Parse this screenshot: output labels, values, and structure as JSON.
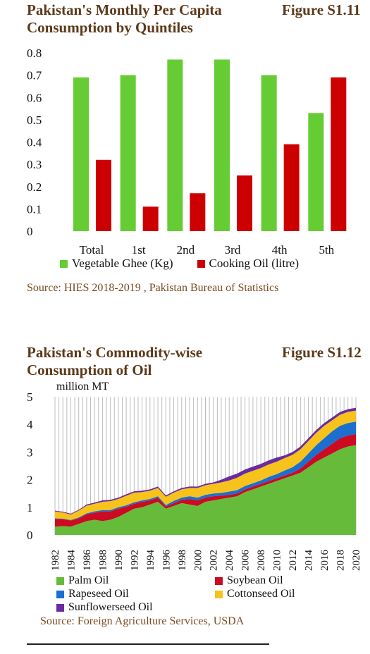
{
  "fig1": {
    "title_line1": "Pakistan's Monthly Per Capita",
    "title_line2": "Consumption by Quintiles",
    "figure_no": "Figure S1.11",
    "source": "Source: HIES 2018-2019 , Pakistan Bureau of Statistics",
    "legend": [
      {
        "label": "Vegetable Ghee (Kg)",
        "color": "#66cc33"
      },
      {
        "label": "Cooking Oil (litre)",
        "color": "#cc0000"
      }
    ]
  },
  "fig2": {
    "title_line1": "Pakistan's Commodity-wise",
    "title_line2": "Consumption of Oil",
    "figure_no": "Figure S1.12",
    "unit_label": "million MT",
    "source": "Source: Foreign Agriculture Services, USDA",
    "legend": [
      {
        "label": "Palm Oil",
        "color": "#66bb3a"
      },
      {
        "label": "Soybean Oil",
        "color": "#cc0a22"
      },
      {
        "label": "Rapeseed Oil",
        "color": "#1a6fd1"
      },
      {
        "label": "Cottonseed Oil",
        "color": "#f7c21b"
      },
      {
        "label": "Sunflowerseed Oil",
        "color": "#6a2ba2"
      }
    ]
  },
  "chart_data": [
    {
      "type": "bar",
      "title": "Pakistan's Monthly Per Capita Consumption by Quintiles",
      "categories": [
        "Total",
        "1st",
        "2nd",
        "3rd",
        "4th",
        "5th"
      ],
      "series": [
        {
          "name": "Vegetable Ghee (Kg)",
          "color": "#66cc33",
          "values": [
            0.69,
            0.7,
            0.77,
            0.77,
            0.7,
            0.53
          ]
        },
        {
          "name": "Cooking Oil (litre)",
          "color": "#cc0000",
          "values": [
            0.32,
            0.11,
            0.17,
            0.25,
            0.39,
            0.69
          ]
        }
      ],
      "ylim": [
        0,
        0.8
      ],
      "yticks": [
        "0",
        "0.1",
        "0.2",
        "0.3",
        "0.4",
        "0.5",
        "0.6",
        "0.7",
        "0.8"
      ],
      "grid": false,
      "legend_position": "bottom"
    },
    {
      "type": "area",
      "title": "Pakistan's Commodity-wise Consumption of Oil",
      "ylabel": "million MT",
      "x": [
        1982,
        1983,
        1984,
        1985,
        1986,
        1987,
        1988,
        1989,
        1990,
        1991,
        1992,
        1993,
        1994,
        1995,
        1996,
        1997,
        1998,
        1999,
        2000,
        2001,
        2002,
        2003,
        2004,
        2005,
        2006,
        2007,
        2008,
        2009,
        2010,
        2011,
        2012,
        2013,
        2014,
        2015,
        2016,
        2017,
        2018,
        2019,
        2020
      ],
      "xticks": [
        "1982",
        "1984",
        "1986",
        "1988",
        "1990",
        "1992",
        "1994",
        "1996",
        "1998",
        "2000",
        "2002",
        "2004",
        "2006",
        "2008",
        "2010",
        "2012",
        "2014",
        "2016",
        "2018",
        "2020"
      ],
      "ylim": [
        0,
        5
      ],
      "yticks": [
        "0",
        "1",
        "2",
        "3",
        "4",
        "5"
      ],
      "stacked": true,
      "series": [
        {
          "name": "Palm Oil",
          "color": "#66bb3a",
          "values": [
            0.3,
            0.32,
            0.3,
            0.4,
            0.5,
            0.55,
            0.5,
            0.55,
            0.65,
            0.8,
            0.95,
            1.0,
            1.1,
            1.2,
            0.95,
            1.05,
            1.15,
            1.1,
            1.05,
            1.2,
            1.25,
            1.3,
            1.35,
            1.4,
            1.55,
            1.65,
            1.75,
            1.85,
            1.95,
            2.05,
            2.15,
            2.25,
            2.45,
            2.65,
            2.8,
            2.95,
            3.1,
            3.2,
            3.25
          ]
        },
        {
          "name": "Soybean Oil",
          "color": "#cc0a22",
          "values": [
            0.28,
            0.25,
            0.22,
            0.2,
            0.25,
            0.25,
            0.35,
            0.3,
            0.3,
            0.22,
            0.18,
            0.2,
            0.15,
            0.15,
            0.08,
            0.1,
            0.12,
            0.2,
            0.2,
            0.15,
            0.15,
            0.12,
            0.1,
            0.1,
            0.1,
            0.1,
            0.1,
            0.1,
            0.1,
            0.1,
            0.1,
            0.15,
            0.2,
            0.25,
            0.3,
            0.35,
            0.4,
            0.4,
            0.4
          ]
        },
        {
          "name": "Rapeseed Oil",
          "color": "#1a6fd1",
          "values": [
            0.02,
            0.02,
            0.02,
            0.03,
            0.03,
            0.05,
            0.05,
            0.05,
            0.05,
            0.05,
            0.05,
            0.05,
            0.05,
            0.05,
            0.05,
            0.08,
            0.08,
            0.1,
            0.1,
            0.1,
            0.1,
            0.1,
            0.12,
            0.12,
            0.12,
            0.12,
            0.12,
            0.15,
            0.15,
            0.18,
            0.2,
            0.25,
            0.3,
            0.35,
            0.4,
            0.45,
            0.45,
            0.45,
            0.45
          ]
        },
        {
          "name": "Cottonseed Oil",
          "color": "#f7c21b",
          "values": [
            0.25,
            0.22,
            0.2,
            0.25,
            0.28,
            0.28,
            0.3,
            0.32,
            0.3,
            0.35,
            0.35,
            0.3,
            0.3,
            0.3,
            0.3,
            0.3,
            0.3,
            0.3,
            0.35,
            0.35,
            0.35,
            0.38,
            0.4,
            0.45,
            0.45,
            0.45,
            0.45,
            0.45,
            0.45,
            0.45,
            0.45,
            0.45,
            0.45,
            0.45,
            0.45,
            0.4,
            0.4,
            0.4,
            0.4
          ]
        },
        {
          "name": "Sunflowerseed Oil",
          "color": "#6a2ba2",
          "values": [
            0.03,
            0.03,
            0.03,
            0.03,
            0.04,
            0.04,
            0.05,
            0.05,
            0.05,
            0.05,
            0.05,
            0.05,
            0.05,
            0.05,
            0.05,
            0.05,
            0.05,
            0.05,
            0.05,
            0.05,
            0.05,
            0.1,
            0.15,
            0.15,
            0.15,
            0.15,
            0.15,
            0.15,
            0.15,
            0.1,
            0.1,
            0.1,
            0.1,
            0.1,
            0.1,
            0.1,
            0.1,
            0.1,
            0.1
          ]
        }
      ],
      "grid": true,
      "legend_position": "bottom"
    }
  ]
}
